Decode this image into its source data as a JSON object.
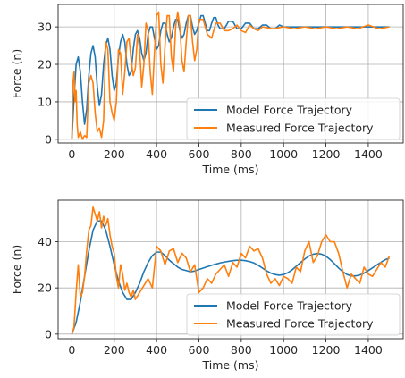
{
  "chart_data": [
    {
      "type": "line",
      "title": "",
      "xlabel": "Time (ms)",
      "ylabel": "Force (n)",
      "xlim": [
        -65,
        1565
      ],
      "ylim": [
        -1,
        36
      ],
      "xticks": [
        0,
        200,
        400,
        600,
        800,
        1000,
        1200,
        1400
      ],
      "yticks": [
        0,
        10,
        20,
        30
      ],
      "grid": true,
      "legend": {
        "placement": "lower-right"
      },
      "series": [
        {
          "name": "Model Force Trajectory",
          "color": "#1f77b4",
          "x": [
            0,
            10,
            20,
            30,
            40,
            50,
            60,
            70,
            80,
            90,
            100,
            110,
            120,
            130,
            140,
            150,
            160,
            170,
            180,
            190,
            200,
            210,
            220,
            230,
            240,
            250,
            260,
            270,
            280,
            290,
            300,
            310,
            320,
            330,
            340,
            350,
            360,
            370,
            380,
            390,
            400,
            410,
            420,
            430,
            440,
            450,
            460,
            470,
            480,
            490,
            500,
            510,
            520,
            530,
            540,
            550,
            560,
            570,
            580,
            590,
            600,
            610,
            620,
            630,
            640,
            650,
            660,
            670,
            680,
            690,
            700,
            720,
            740,
            760,
            780,
            800,
            820,
            840,
            860,
            880,
            900,
            920,
            940,
            960,
            980,
            1000,
            1050,
            1100,
            1150,
            1200,
            1250,
            1300,
            1350,
            1400,
            1450,
            1500
          ],
          "y": [
            0,
            11,
            20,
            22,
            18,
            10,
            4,
            8,
            17,
            23,
            25,
            22,
            14,
            9,
            12,
            20,
            25,
            27,
            24,
            17,
            13,
            15,
            22,
            26,
            28,
            26,
            20,
            17,
            18,
            24,
            28,
            29,
            27,
            23,
            21,
            23,
            28,
            30,
            30,
            27,
            24,
            25,
            29,
            31,
            31,
            28,
            26,
            27,
            30,
            32,
            32,
            29,
            27,
            28,
            31,
            33,
            33,
            30,
            28,
            29,
            31,
            33,
            33,
            31,
            29,
            29,
            31,
            32.5,
            32.5,
            30.5,
            29.5,
            29.5,
            31.5,
            31.5,
            29.5,
            29.5,
            31,
            31,
            29.5,
            29.5,
            30.5,
            30.5,
            29.5,
            29.5,
            30.5,
            30,
            30,
            30,
            30,
            30,
            30,
            30,
            30,
            30,
            30,
            30
          ]
        },
        {
          "name": "Measured Force Trajectory",
          "color": "#ff7f0e",
          "x": [
            0,
            5,
            10,
            15,
            20,
            25,
            30,
            40,
            50,
            60,
            70,
            80,
            90,
            100,
            110,
            120,
            130,
            140,
            150,
            160,
            170,
            180,
            190,
            200,
            210,
            220,
            230,
            240,
            250,
            260,
            270,
            280,
            290,
            300,
            310,
            320,
            330,
            340,
            350,
            360,
            370,
            380,
            390,
            400,
            410,
            420,
            430,
            440,
            450,
            460,
            470,
            480,
            490,
            500,
            510,
            520,
            530,
            540,
            550,
            560,
            570,
            580,
            590,
            600,
            620,
            640,
            660,
            680,
            700,
            720,
            740,
            760,
            780,
            800,
            820,
            840,
            860,
            880,
            900,
            950,
            1000,
            1050,
            1100,
            1150,
            1200,
            1250,
            1300,
            1350,
            1400,
            1450,
            1500
          ],
          "y": [
            0,
            15,
            18,
            10,
            13,
            4,
            0.5,
            2,
            0,
            1,
            0.5,
            15,
            17,
            15,
            7,
            2,
            3,
            0.5,
            5,
            26,
            24,
            10,
            7,
            5,
            10,
            24,
            23,
            12,
            18,
            26,
            27,
            21,
            17,
            19,
            28,
            24,
            14,
            20,
            31,
            29,
            18,
            12,
            23,
            33,
            34,
            20,
            15,
            25,
            33,
            33,
            22,
            18,
            30,
            34,
            30,
            21,
            18,
            26,
            33,
            33,
            26,
            21,
            24,
            32,
            32,
            28,
            27,
            31,
            31,
            29,
            29,
            29.5,
            30.5,
            29,
            28.5,
            30.5,
            29.5,
            29,
            30,
            29.5,
            30,
            29.5,
            30,
            29.5,
            30,
            29.5,
            30,
            29.5,
            30.5,
            29.5,
            30
          ]
        }
      ]
    },
    {
      "type": "line",
      "title": "",
      "xlabel": "Time (ms)",
      "ylabel": "Force (n)",
      "xlim": [
        -65,
        1565
      ],
      "ylim": [
        -2,
        58
      ],
      "xticks": [
        0,
        200,
        400,
        600,
        800,
        1000,
        1200,
        1400
      ],
      "yticks": [
        0,
        20,
        40
      ],
      "grid": true,
      "legend": {
        "placement": "lower-right"
      },
      "series": [
        {
          "name": "Model Force Trajectory",
          "color": "#1f77b4",
          "x": [
            0,
            20,
            40,
            60,
            80,
            100,
            120,
            140,
            160,
            180,
            200,
            220,
            240,
            260,
            280,
            300,
            320,
            340,
            360,
            380,
            400,
            420,
            440,
            460,
            480,
            500,
            520,
            540,
            560,
            580,
            600,
            620,
            640,
            660,
            680,
            700,
            720,
            740,
            760,
            780,
            800,
            820,
            840,
            860,
            880,
            900,
            920,
            940,
            960,
            980,
            1000,
            1020,
            1040,
            1060,
            1080,
            1100,
            1120,
            1140,
            1160,
            1180,
            1200,
            1220,
            1240,
            1260,
            1280,
            1300,
            1320,
            1340,
            1360,
            1380,
            1400,
            1420,
            1440,
            1460,
            1480,
            1500
          ],
          "y": [
            0,
            5,
            14,
            25,
            36,
            45,
            49,
            49,
            45,
            38,
            30,
            23,
            18,
            15,
            15,
            18,
            22,
            27,
            31,
            34,
            35.5,
            35.5,
            34,
            32,
            30.5,
            29,
            28,
            27.5,
            27,
            27.3,
            28,
            28.6,
            29.2,
            29.8,
            30.3,
            30.8,
            31.2,
            31.5,
            31.8,
            32,
            32,
            31.8,
            31.4,
            30.8,
            29.8,
            28.6,
            27.4,
            26.4,
            25.8,
            25.5,
            25.8,
            26.6,
            27.8,
            29.4,
            31,
            32.5,
            33.8,
            34.6,
            34.9,
            34.6,
            33.7,
            32.3,
            30.5,
            28.6,
            27,
            25.8,
            25.2,
            25.2,
            25.6,
            26.4,
            27.5,
            28.7,
            29.9,
            31.1,
            32.2,
            33
          ]
        },
        {
          "name": "Measured Force Trajectory",
          "color": "#ff7f0e",
          "x": [
            0,
            10,
            20,
            30,
            40,
            50,
            60,
            70,
            80,
            90,
            100,
            110,
            120,
            130,
            140,
            150,
            160,
            170,
            180,
            190,
            200,
            210,
            220,
            230,
            240,
            250,
            260,
            270,
            280,
            290,
            300,
            320,
            340,
            360,
            380,
            400,
            420,
            440,
            460,
            480,
            500,
            520,
            540,
            560,
            580,
            600,
            620,
            640,
            660,
            680,
            700,
            720,
            740,
            760,
            780,
            800,
            820,
            840,
            860,
            880,
            900,
            920,
            940,
            960,
            980,
            1000,
            1020,
            1040,
            1060,
            1080,
            1100,
            1120,
            1140,
            1160,
            1180,
            1200,
            1220,
            1240,
            1260,
            1280,
            1300,
            1320,
            1340,
            1360,
            1380,
            1400,
            1420,
            1440,
            1460,
            1480,
            1500
          ],
          "y": [
            0,
            3,
            18,
            30,
            16,
            18,
            25,
            36,
            45,
            47,
            55,
            52,
            49,
            53,
            46,
            51,
            47,
            50,
            43,
            38,
            35,
            25,
            20,
            30,
            26,
            19,
            22,
            18,
            16,
            19,
            15,
            18,
            21,
            24,
            20,
            38,
            36,
            30,
            36,
            37,
            31,
            35,
            33,
            27,
            30,
            18,
            20,
            24,
            22,
            26,
            28,
            30,
            25,
            31,
            29,
            35,
            33,
            38,
            36,
            37,
            33,
            26,
            22,
            24,
            21,
            25,
            24,
            22,
            29,
            27,
            36,
            40,
            31,
            34,
            40,
            43,
            40,
            40,
            35,
            27,
            20,
            26,
            24,
            22,
            29,
            26,
            25,
            28,
            31,
            29,
            34
          ]
        }
      ]
    }
  ]
}
